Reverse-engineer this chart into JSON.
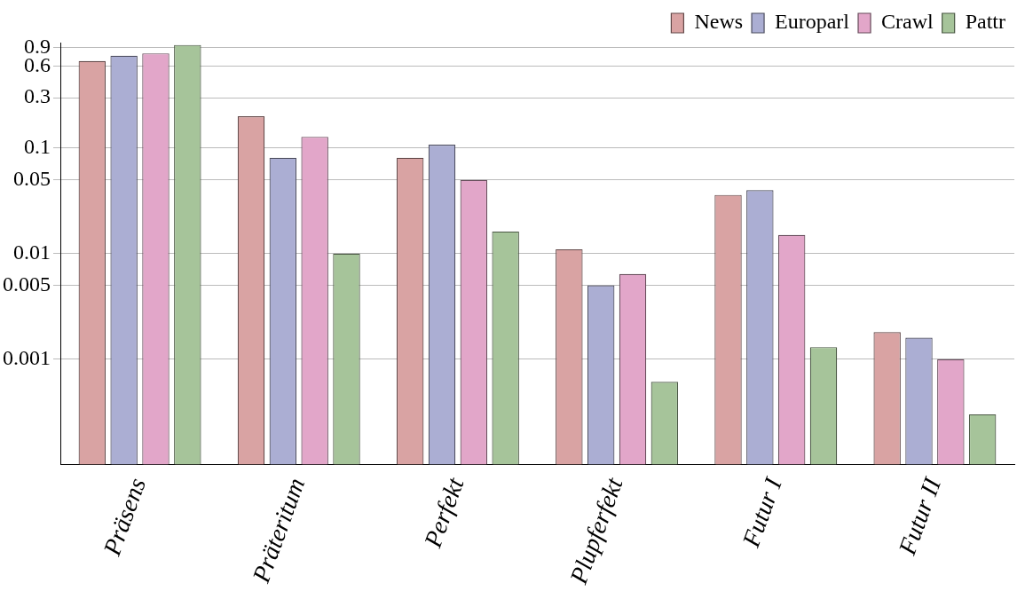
{
  "chart_data": {
    "type": "bar",
    "categories": [
      "Präsens",
      "Präteritum",
      "Perfekt",
      "Plupferfekt",
      "Futur I",
      "Futur II"
    ],
    "series": [
      {
        "name": "News",
        "color": "#d9a3a3",
        "values": [
          0.67,
          0.2,
          0.081,
          0.011,
          0.036,
          0.0018
        ]
      },
      {
        "name": "Europarl",
        "color": "#abaed3",
        "values": [
          0.75,
          0.081,
          0.108,
          0.005,
          0.04,
          0.0016
        ]
      },
      {
        "name": "Crawl",
        "color": "#e2a6c9",
        "values": [
          0.79,
          0.128,
          0.05,
          0.0064,
          0.015,
          0.001
        ]
      },
      {
        "name": "Pattr",
        "color": "#a6c49a",
        "values": [
          0.95,
          0.01,
          0.0162,
          0.00061,
          0.0013,
          0.0003
        ]
      }
    ],
    "log": true,
    "ylim": [
      0.0001,
      1
    ],
    "yticks": [
      0.001,
      0.005,
      0.01,
      0.05,
      0.1,
      0.3,
      0.6,
      0.9
    ],
    "grid": "y",
    "legend": "top right"
  }
}
